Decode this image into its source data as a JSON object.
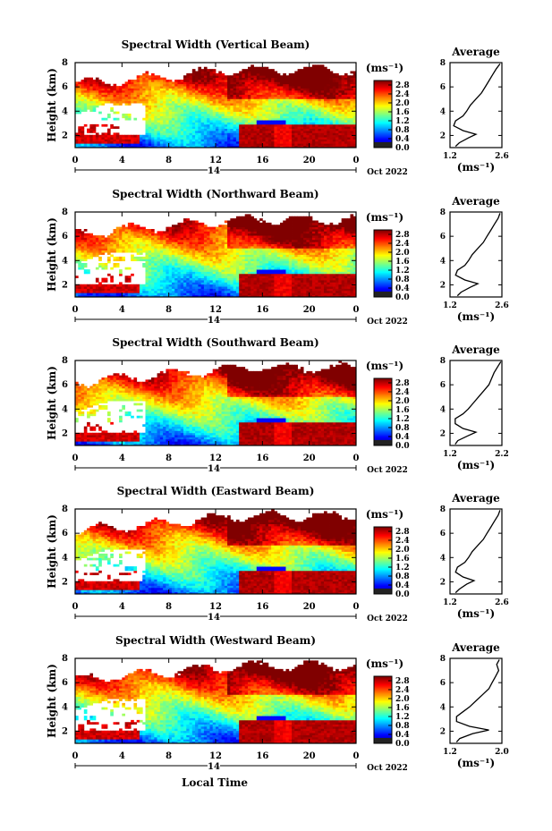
{
  "figure": {
    "bottom_xlabel": "Local Time"
  },
  "chart_data": [
    {
      "type": "heatmap",
      "title": "Spectral Width (Vertical Beam)",
      "ylabel": "Height (km)",
      "yticks": [
        "2",
        "4",
        "6",
        "8"
      ],
      "ylim": [
        1,
        8
      ],
      "xticks": [
        "0",
        "4",
        "8",
        "12",
        "16",
        "20",
        "0"
      ],
      "xlim": [
        0,
        24
      ],
      "date_label": "14",
      "month_label": "Oct 2022",
      "colorbar": {
        "unit": "(ms⁻¹)",
        "ticks": [
          "0.0",
          "0.4",
          "0.8",
          "1.2",
          "1.6",
          "2.0",
          "2.4",
          "2.8"
        ],
        "range": [
          0.0,
          3.0
        ]
      },
      "profile": {
        "title": "Average",
        "xlabel": "(ms⁻¹)",
        "xticks": [
          "1.2",
          "2.6"
        ],
        "xlim": [
          1.2,
          2.6
        ],
        "yticks": [
          "2",
          "4",
          "6",
          "8"
        ],
        "ylim": [
          1,
          8
        ],
        "heights": [
          1.1,
          1.4,
          1.8,
          2.1,
          2.4,
          2.8,
          3.2,
          3.6,
          4.0,
          4.5,
          5.0,
          5.5,
          6.0,
          6.5,
          7.0,
          7.5,
          7.9
        ],
        "values": [
          1.35,
          1.45,
          1.7,
          1.9,
          1.55,
          1.3,
          1.35,
          1.55,
          1.65,
          1.75,
          1.9,
          2.05,
          2.15,
          2.25,
          2.35,
          2.45,
          2.55
        ]
      }
    },
    {
      "type": "heatmap",
      "title": "Spectral Width (Northward Beam)",
      "ylabel": "Height (km)",
      "yticks": [
        "2",
        "4",
        "6",
        "8"
      ],
      "ylim": [
        1,
        8
      ],
      "xticks": [
        "0",
        "4",
        "8",
        "12",
        "16",
        "20",
        "0"
      ],
      "xlim": [
        0,
        24
      ],
      "date_label": "14",
      "month_label": "Oct 2022",
      "colorbar": {
        "unit": "(ms⁻¹)",
        "ticks": [
          "0.0",
          "0.4",
          "0.8",
          "1.2",
          "1.6",
          "2.0",
          "2.4",
          "2.8"
        ],
        "range": [
          0.0,
          3.0
        ]
      },
      "profile": {
        "title": "Average",
        "xlabel": "(ms⁻¹)",
        "xticks": [
          "1.2",
          "2.6"
        ],
        "xlim": [
          1.2,
          2.6
        ],
        "yticks": [
          "2",
          "4",
          "6",
          "8"
        ],
        "ylim": [
          1,
          8
        ],
        "heights": [
          1.1,
          1.4,
          1.8,
          2.1,
          2.4,
          2.8,
          3.2,
          3.6,
          4.0,
          4.5,
          5.0,
          5.5,
          6.0,
          6.5,
          7.0,
          7.5,
          7.9
        ],
        "values": [
          1.4,
          1.5,
          1.75,
          1.95,
          1.6,
          1.35,
          1.4,
          1.6,
          1.7,
          1.8,
          1.95,
          2.1,
          2.2,
          2.3,
          2.4,
          2.5,
          2.55
        ]
      }
    },
    {
      "type": "heatmap",
      "title": "Spectral Width (Southward Beam)",
      "ylabel": "Height (km)",
      "yticks": [
        "2",
        "4",
        "6",
        "8"
      ],
      "ylim": [
        1,
        8
      ],
      "xticks": [
        "0",
        "4",
        "8",
        "12",
        "16",
        "20",
        "0"
      ],
      "xlim": [
        0,
        24
      ],
      "date_label": "14",
      "month_label": "Oct 2022",
      "colorbar": {
        "unit": "(ms⁻¹)",
        "ticks": [
          "0.0",
          "0.4",
          "0.8",
          "1.2",
          "1.6",
          "2.0",
          "2.4",
          "2.8"
        ],
        "range": [
          0.0,
          3.0
        ]
      },
      "profile": {
        "title": "Average",
        "xlabel": "(ms⁻¹)",
        "xticks": [
          "1.2",
          "2.2"
        ],
        "xlim": [
          1.2,
          2.2
        ],
        "yticks": [
          "2",
          "4",
          "6",
          "8"
        ],
        "ylim": [
          1,
          8
        ],
        "heights": [
          1.1,
          1.4,
          1.8,
          2.1,
          2.4,
          2.8,
          3.2,
          3.6,
          4.0,
          4.5,
          5.0,
          5.5,
          6.0,
          6.5,
          7.0,
          7.5,
          7.9
        ],
        "values": [
          1.3,
          1.35,
          1.55,
          1.7,
          1.45,
          1.3,
          1.3,
          1.45,
          1.55,
          1.65,
          1.75,
          1.85,
          1.95,
          2.0,
          2.05,
          2.12,
          2.18
        ]
      }
    },
    {
      "type": "heatmap",
      "title": "Spectral Width (Eastward Beam)",
      "ylabel": "Height (km)",
      "yticks": [
        "2",
        "4",
        "6",
        "8"
      ],
      "ylim": [
        1,
        8
      ],
      "xticks": [
        "0",
        "4",
        "8",
        "12",
        "16",
        "20",
        "0"
      ],
      "xlim": [
        0,
        24
      ],
      "date_label": "14",
      "month_label": "Oct 2022",
      "colorbar": {
        "unit": "(ms⁻¹)",
        "ticks": [
          "0.0",
          "0.4",
          "0.8",
          "1.2",
          "1.6",
          "2.0",
          "2.4",
          "2.8"
        ],
        "range": [
          0.0,
          3.0
        ]
      },
      "profile": {
        "title": "Average",
        "xlabel": "(ms⁻¹)",
        "xticks": [
          "1.2",
          "2.6"
        ],
        "xlim": [
          1.2,
          2.6
        ],
        "yticks": [
          "2",
          "4",
          "6",
          "8"
        ],
        "ylim": [
          1,
          8
        ],
        "heights": [
          1.1,
          1.4,
          1.8,
          2.1,
          2.4,
          2.8,
          3.2,
          3.6,
          4.0,
          4.5,
          5.0,
          5.5,
          6.0,
          6.5,
          7.0,
          7.5,
          7.9
        ],
        "values": [
          1.35,
          1.45,
          1.65,
          1.85,
          1.55,
          1.35,
          1.4,
          1.6,
          1.7,
          1.8,
          1.95,
          2.1,
          2.2,
          2.3,
          2.4,
          2.5,
          2.55
        ]
      }
    },
    {
      "type": "heatmap",
      "title": "Spectral Width (Westward Beam)",
      "ylabel": "Height (km)",
      "yticks": [
        "2",
        "4",
        "6",
        "8"
      ],
      "ylim": [
        1,
        8
      ],
      "xticks": [
        "0",
        "4",
        "8",
        "12",
        "16",
        "20",
        "0"
      ],
      "xlim": [
        0,
        24
      ],
      "date_label": "14",
      "month_label": "Oct 2022",
      "colorbar": {
        "unit": "(ms⁻¹)",
        "ticks": [
          "0.0",
          "0.4",
          "0.8",
          "1.2",
          "1.6",
          "2.0",
          "2.4",
          "2.8"
        ],
        "range": [
          0.0,
          3.0
        ]
      },
      "profile": {
        "title": "Average",
        "xlabel": "(ms⁻¹)",
        "xticks": [
          "1.2",
          "2.0"
        ],
        "xlim": [
          1.2,
          2.0
        ],
        "yticks": [
          "2",
          "4",
          "6",
          "8"
        ],
        "ylim": [
          1,
          8
        ],
        "heights": [
          1.1,
          1.4,
          1.8,
          2.1,
          2.4,
          2.8,
          3.2,
          3.6,
          4.0,
          4.5,
          5.0,
          5.5,
          6.0,
          6.5,
          7.0,
          7.5,
          7.9
        ],
        "values": [
          1.3,
          1.35,
          1.55,
          1.8,
          1.5,
          1.3,
          1.3,
          1.4,
          1.5,
          1.6,
          1.7,
          1.8,
          1.85,
          1.9,
          1.95,
          1.92,
          1.96
        ]
      }
    }
  ]
}
